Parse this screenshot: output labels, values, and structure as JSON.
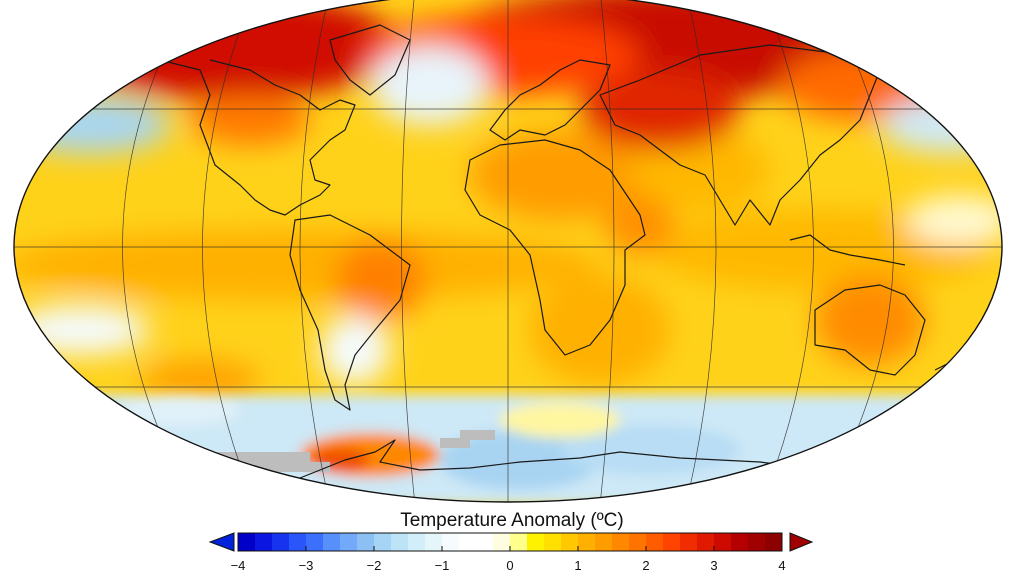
{
  "map": {
    "projection": "Robinson",
    "variable": "temperature anomaly",
    "land_missing_color": "#bdbdbd",
    "coastline_color": "#1a1a1a",
    "regions": [
      {
        "name": "arctic-north-america",
        "anomaly": 3.6
      },
      {
        "name": "arctic-siberia",
        "anomaly": 3.7
      },
      {
        "name": "greenland-sea",
        "anomaly": -0.4
      },
      {
        "name": "north-pacific-east",
        "anomaly": -0.7
      },
      {
        "name": "north-pacific-west",
        "anomaly": -0.5
      },
      {
        "name": "north-africa",
        "anomaly": 1.8
      },
      {
        "name": "brazil",
        "anomaly": 2.3
      },
      {
        "name": "australia-east",
        "anomaly": 2.2
      },
      {
        "name": "south-atlantic-argentina",
        "anomaly": -0.3
      },
      {
        "name": "antarctic-peninsula",
        "anomaly": 3.0
      },
      {
        "name": "west-antarctica",
        "anomaly": -0.5
      },
      {
        "name": "east-antarctica",
        "anomaly": -0.7
      }
    ]
  },
  "colorbar": {
    "title": "Temperature Anomaly (ºC)",
    "min": -4,
    "max": 4,
    "ticks": [
      "−4",
      "−3",
      "−2",
      "−1",
      "0",
      "1",
      "2",
      "3",
      "4"
    ],
    "tick_values": [
      -4,
      -3,
      -2,
      -1,
      0,
      1,
      2,
      3,
      4
    ],
    "bins_per_unit": 4,
    "colors": [
      "#0000c8",
      "#0b16e0",
      "#1833f0",
      "#2a55f8",
      "#3c70fc",
      "#5790fb",
      "#72a9f8",
      "#8cc0f5",
      "#a6d4f5",
      "#bde3f6",
      "#d2eef8",
      "#e5f6fb",
      "#f6fbfd",
      "#ffffff",
      "#ffffff",
      "#fffde0",
      "#ffff8c",
      "#fff200",
      "#ffe000",
      "#ffc800",
      "#ffb000",
      "#ff9c00",
      "#ff8800",
      "#ff7400",
      "#ff5c00",
      "#ff4400",
      "#f02c00",
      "#e01a00",
      "#cc0a00",
      "#b40000",
      "#a00000",
      "#8c0000"
    ],
    "under_color": "#0022dd",
    "over_color": "#a00000"
  }
}
